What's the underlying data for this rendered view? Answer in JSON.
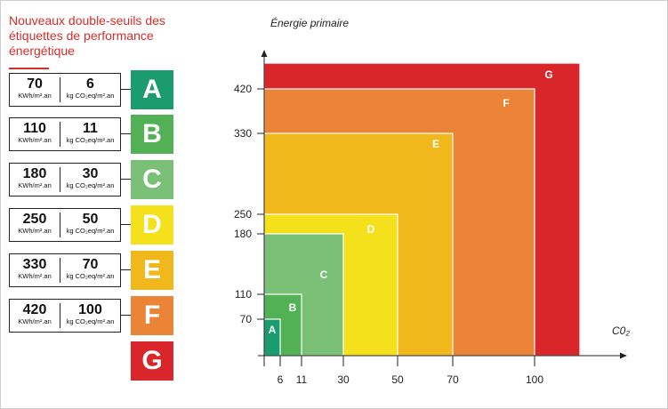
{
  "title": "Nouveaux double-seuils des étiquettes de performance énergétique",
  "classes": [
    {
      "letter": "A",
      "energie": "70",
      "co2": "6",
      "color": "#1a9c6e"
    },
    {
      "letter": "B",
      "energie": "110",
      "co2": "11",
      "color": "#52b154"
    },
    {
      "letter": "C",
      "energie": "180",
      "co2": "30",
      "color": "#7bc077"
    },
    {
      "letter": "D",
      "energie": "250",
      "co2": "50",
      "color": "#f4e01b"
    },
    {
      "letter": "E",
      "energie": "330",
      "co2": "70",
      "color": "#f0b81a"
    },
    {
      "letter": "F",
      "energie": "420",
      "co2": "100",
      "color": "#ec8438"
    },
    {
      "letter": "G",
      "energie": "",
      "co2": "",
      "color": "#d8262b"
    }
  ],
  "units": {
    "energie": "KWh/m².an",
    "co2": "kg CO₂eq/m².an"
  },
  "axes": {
    "y_label": "Énergie primaire",
    "x_label": "C0₂",
    "y_ticks": [
      "70",
      "110",
      "180",
      "250",
      "330",
      "420"
    ],
    "x_ticks": [
      "6",
      "11",
      "30",
      "50",
      "70",
      "100"
    ]
  }
}
